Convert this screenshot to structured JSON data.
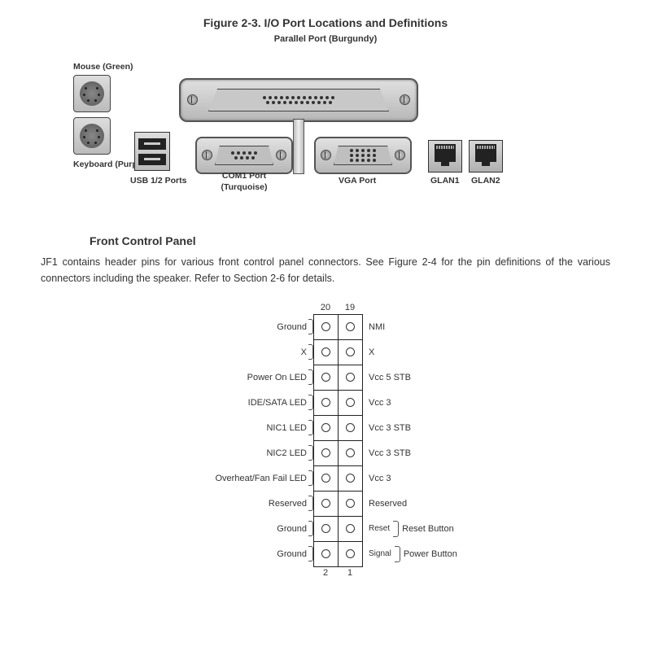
{
  "figure": {
    "title": "Figure 2-3.  I/O Port Locations and Definitions",
    "parallel_label": "Parallel Port (Burgundy)",
    "mouse_label": "Mouse (Green)",
    "keyboard_label": "Keyboard (Purple)",
    "usb_label": "USB 1/2 Ports",
    "com_label": "COM1 Port (Turquoise)",
    "vga_label": "VGA Port",
    "glan1_label": "GLAN1",
    "glan2_label": "GLAN2"
  },
  "section": {
    "heading": "Front Control Panel",
    "paragraph": "JF1 contains header pins for various front control panel connectors.  See Figure 2-4 for the pin definitions of the various connectors including the speaker.  Refer to Section 2-6 for details."
  },
  "pinheader": {
    "top_left_num": "20",
    "top_right_num": "19",
    "bottom_left_num": "2",
    "bottom_right_num": "1",
    "rows": [
      {
        "left": "Ground",
        "right": "NMI"
      },
      {
        "left": "X",
        "right": "X"
      },
      {
        "left": "Power On LED",
        "right": "Vcc 5 STB"
      },
      {
        "left": "IDE/SATA LED",
        "right": "Vcc 3"
      },
      {
        "left": "NIC1 LED",
        "right": "Vcc 3 STB"
      },
      {
        "left": "NIC2 LED",
        "right": "Vcc 3 STB"
      },
      {
        "left": "Overheat/Fan Fail LED",
        "right": "Vcc 3"
      },
      {
        "left": "Reserved",
        "right": "Reserved"
      },
      {
        "left": "Ground",
        "right": "Reset",
        "right_group": "Reset Button"
      },
      {
        "left": "Ground",
        "right": "Signal",
        "right_group": "Power Button"
      }
    ]
  },
  "style": {
    "text_color": "#333333",
    "border_color": "#222222",
    "metal_light": "#e0e0e0",
    "metal_dark": "#b8b8b8",
    "label_fontsize": 11,
    "body_fontsize": 12.5,
    "title_fontsize": 14
  }
}
